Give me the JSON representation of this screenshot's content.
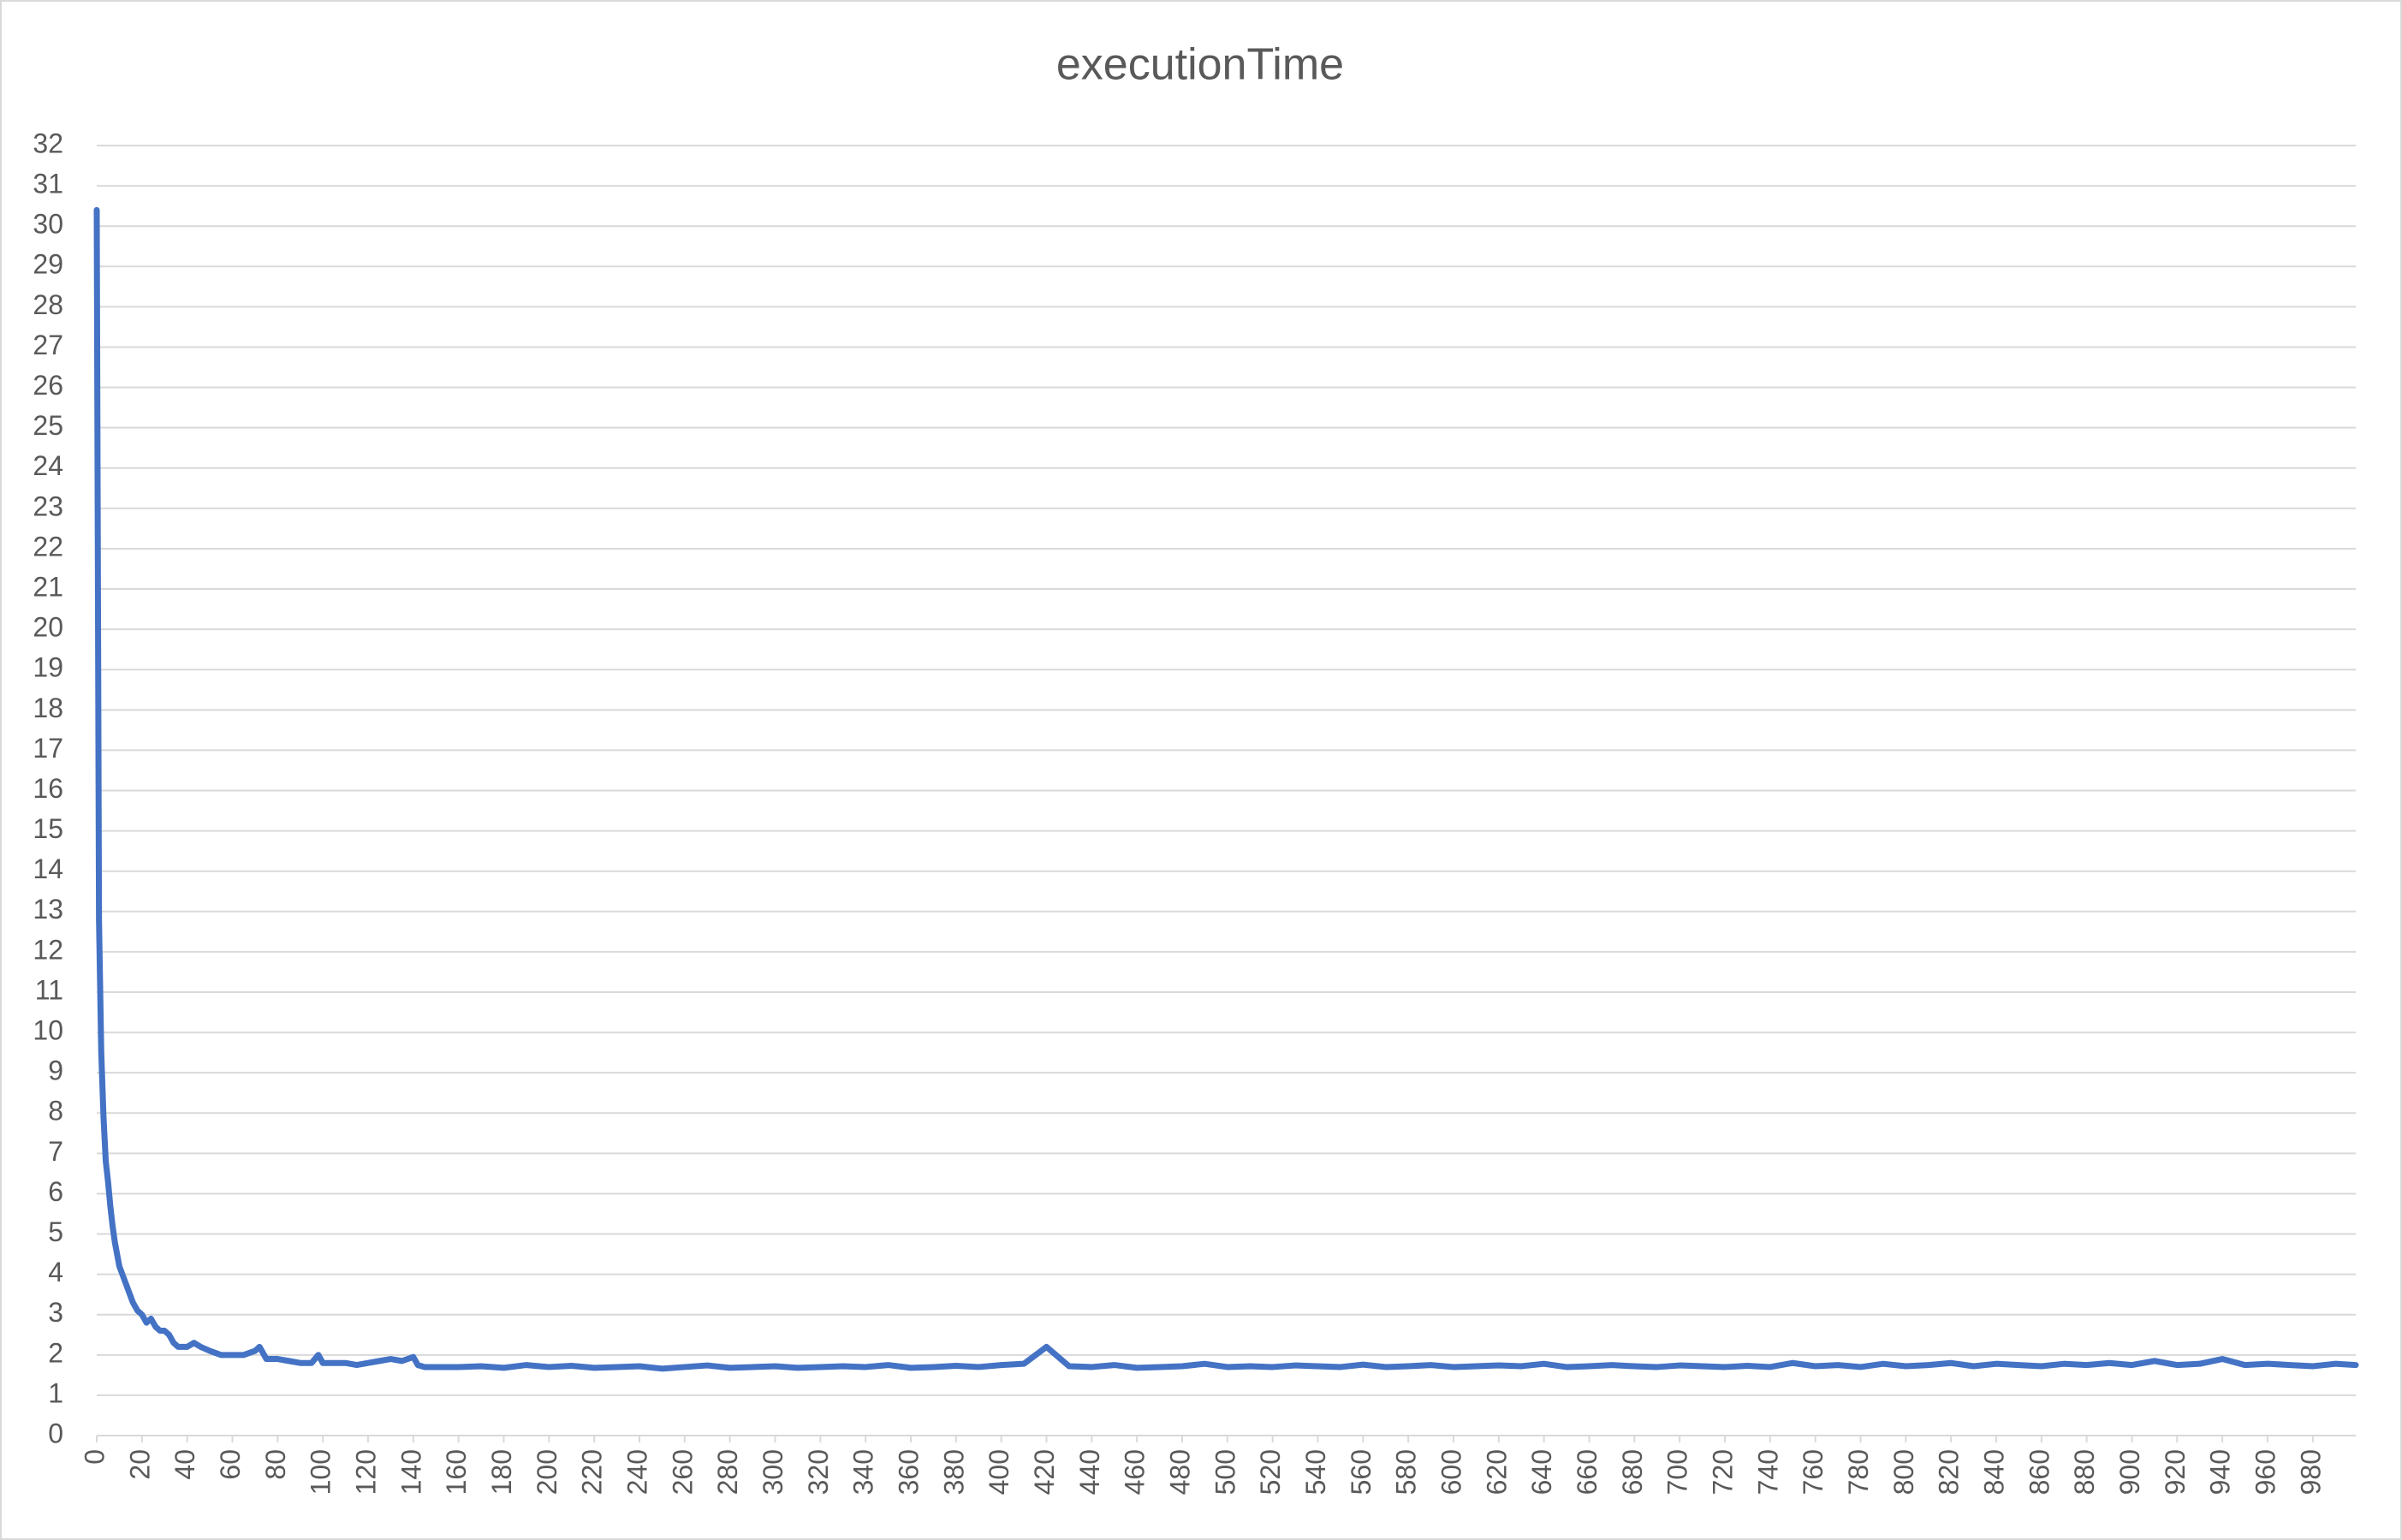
{
  "chart_data": {
    "type": "line",
    "title": "executionTime",
    "x": [
      0,
      1,
      2,
      3,
      4,
      5,
      6,
      7,
      8,
      10,
      12,
      14,
      16,
      18,
      20,
      22,
      24,
      26,
      28,
      30,
      32,
      34,
      36,
      38,
      40,
      43,
      46,
      50,
      55,
      60,
      65,
      70,
      72,
      75,
      80,
      85,
      90,
      95,
      98,
      100,
      105,
      110,
      115,
      120,
      125,
      130,
      135,
      140,
      142,
      145,
      150,
      160,
      170,
      180,
      190,
      200,
      210,
      220,
      230,
      240,
      250,
      260,
      270,
      280,
      290,
      300,
      310,
      320,
      330,
      340,
      350,
      360,
      370,
      380,
      390,
      400,
      410,
      420,
      430,
      440,
      450,
      460,
      470,
      480,
      490,
      500,
      510,
      520,
      530,
      540,
      550,
      560,
      570,
      580,
      590,
      600,
      610,
      620,
      630,
      640,
      650,
      660,
      670,
      680,
      690,
      700,
      710,
      720,
      730,
      740,
      750,
      760,
      770,
      780,
      790,
      800,
      810,
      820,
      830,
      840,
      850,
      860,
      870,
      880,
      890,
      900,
      910,
      920,
      930,
      940,
      950,
      960,
      970,
      980,
      990,
      999
    ],
    "series": [
      {
        "name": "executionTime",
        "color": "#4472c4",
        "values": [
          30.4,
          12.8,
          9.5,
          7.9,
          6.8,
          6.3,
          5.7,
          5.2,
          4.8,
          4.2,
          3.9,
          3.6,
          3.3,
          3.1,
          3.0,
          2.8,
          2.9,
          2.7,
          2.6,
          2.6,
          2.5,
          2.3,
          2.2,
          2.2,
          2.2,
          2.3,
          2.2,
          2.1,
          2.0,
          2.0,
          2.0,
          2.1,
          2.2,
          1.9,
          1.9,
          1.85,
          1.8,
          1.8,
          2.0,
          1.8,
          1.8,
          1.8,
          1.75,
          1.8,
          1.85,
          1.9,
          1.85,
          1.95,
          1.75,
          1.7,
          1.7,
          1.7,
          1.72,
          1.68,
          1.75,
          1.7,
          1.73,
          1.68,
          1.7,
          1.72,
          1.66,
          1.7,
          1.74,
          1.68,
          1.7,
          1.72,
          1.68,
          1.7,
          1.72,
          1.7,
          1.75,
          1.68,
          1.7,
          1.73,
          1.7,
          1.75,
          1.78,
          2.2,
          1.72,
          1.7,
          1.75,
          1.68,
          1.7,
          1.72,
          1.78,
          1.7,
          1.72,
          1.7,
          1.74,
          1.72,
          1.7,
          1.76,
          1.7,
          1.72,
          1.75,
          1.7,
          1.72,
          1.74,
          1.72,
          1.78,
          1.7,
          1.72,
          1.75,
          1.72,
          1.7,
          1.74,
          1.72,
          1.7,
          1.73,
          1.7,
          1.8,
          1.72,
          1.75,
          1.7,
          1.78,
          1.72,
          1.75,
          1.8,
          1.72,
          1.78,
          1.75,
          1.72,
          1.78,
          1.75,
          1.8,
          1.75,
          1.85,
          1.75,
          1.78,
          1.9,
          1.75,
          1.78,
          1.75,
          1.72,
          1.78,
          1.75
        ]
      }
    ],
    "xlim": [
      0,
      999
    ],
    "xticks": [
      0,
      20,
      40,
      60,
      80,
      100,
      120,
      140,
      160,
      180,
      200,
      220,
      240,
      260,
      280,
      300,
      320,
      340,
      360,
      380,
      400,
      420,
      440,
      460,
      480,
      500,
      520,
      540,
      560,
      580,
      600,
      620,
      640,
      660,
      680,
      700,
      720,
      740,
      760,
      780,
      800,
      820,
      840,
      860,
      880,
      900,
      920,
      940,
      960,
      980
    ],
    "ylim": [
      0,
      32
    ],
    "yticks": [
      0,
      1,
      2,
      3,
      4,
      5,
      6,
      7,
      8,
      9,
      10,
      11,
      12,
      13,
      14,
      15,
      16,
      17,
      18,
      19,
      20,
      21,
      22,
      23,
      24,
      25,
      26,
      27,
      28,
      29,
      30,
      31,
      32
    ],
    "grid": true
  }
}
